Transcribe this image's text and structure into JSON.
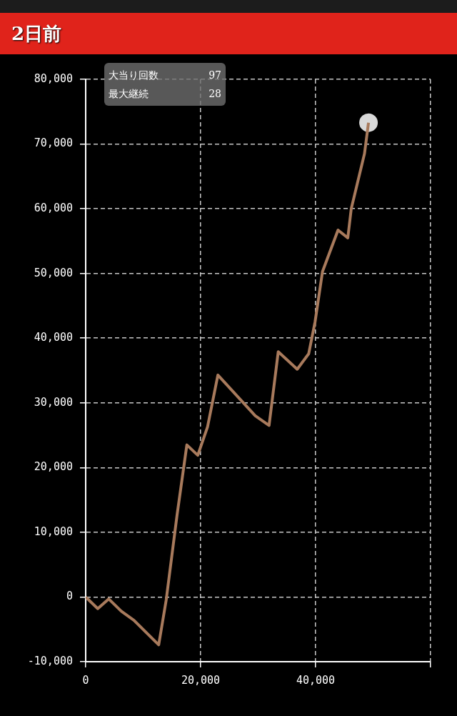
{
  "chart_data": {
    "type": "line",
    "title": "2日前",
    "annotations": [
      "大当り回数",
      "97",
      "最大継続",
      "28"
    ],
    "xlim": [
      0,
      60000
    ],
    "xticks": [
      0,
      {
        "value": 20000,
        "label": "20,000"
      },
      {
        "value": 40000,
        "label": "40,000"
      },
      {
        "value": 60000,
        "label": null
      }
    ],
    "ylim": [
      -10000,
      80000
    ],
    "yticks": [
      {
        "value": -10000,
        "label": "-10,000"
      },
      0,
      {
        "value": 10000,
        "label": "10,000"
      },
      {
        "value": 20000,
        "label": "20,000"
      },
      {
        "value": 30000,
        "label": "30,000"
      },
      {
        "value": 40000,
        "label": "40,000"
      },
      {
        "value": 50000,
        "label": "50,000"
      },
      {
        "value": 60000,
        "label": "60,000"
      },
      {
        "value": 70000,
        "label": "70,000"
      },
      {
        "value": 80000,
        "label": "80,000"
      }
    ],
    "grid": true,
    "legend": false,
    "series": [
      {
        "type": "line",
        "color": "#a87a5c",
        "marker": "none",
        "line_style": "solid",
        "x": [
          0,
          2100,
          4000,
          6200,
          8400,
          12700,
          14000,
          15900,
          17600,
          19500,
          21200,
          23000,
          29500,
          31900,
          33500,
          36800,
          38800,
          39900,
          41200,
          43900,
          45600,
          46200,
          48500,
          49200
        ],
        "values": [
          0,
          -1800,
          -300,
          -2200,
          -3600,
          -7400,
          -500,
          12700,
          23500,
          21900,
          26300,
          34300,
          28000,
          26500,
          37900,
          35200,
          37600,
          42500,
          50300,
          56700,
          55500,
          60000,
          68500,
          73300
        ]
      },
      {
        "type": "scatter",
        "color": "#d9d9d9",
        "marker": "circle",
        "x": [
          49200
        ],
        "values": [
          73300
        ]
      }
    ]
  }
}
